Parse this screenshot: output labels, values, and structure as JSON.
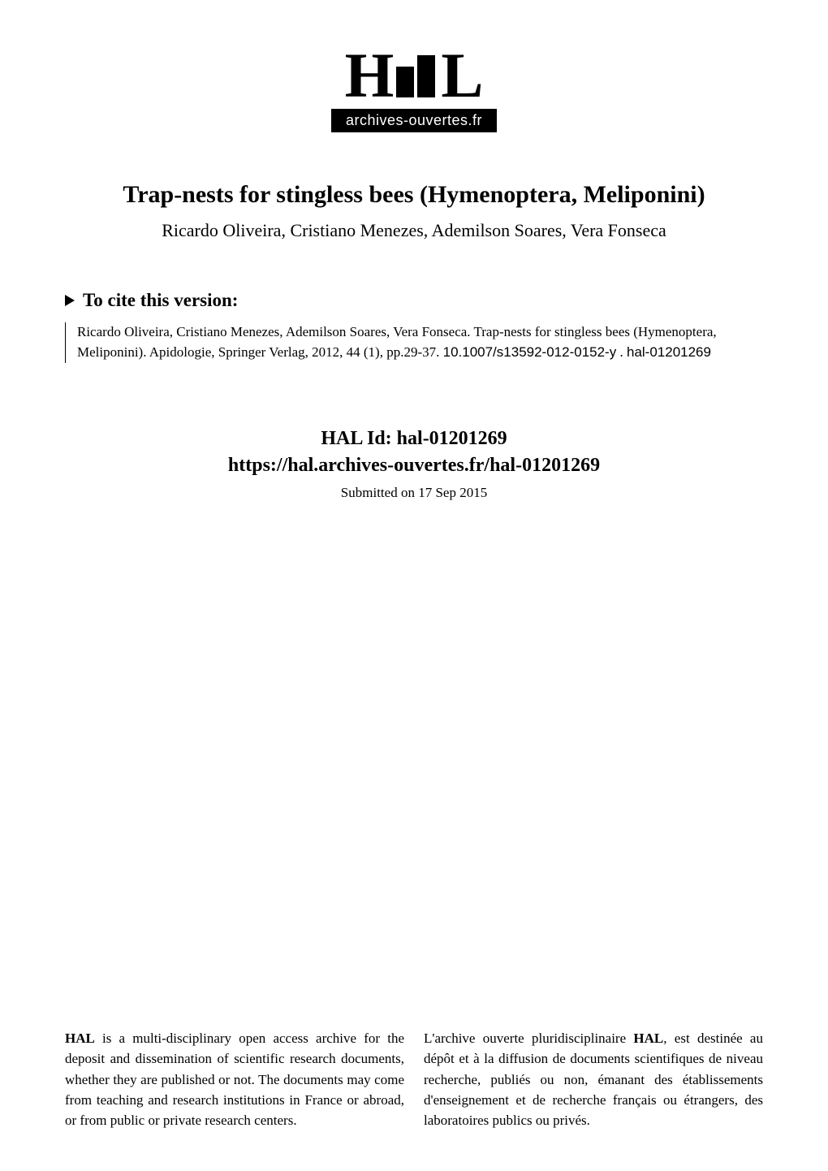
{
  "logo": {
    "text": "archives-ouvertes.fr"
  },
  "paper": {
    "title": "Trap-nests for stingless bees (Hymenoptera, Meliponini)",
    "authors": "Ricardo Oliveira, Cristiano Menezes, Ademilson Soares, Vera Fonseca"
  },
  "cite": {
    "header": "To cite this version:",
    "body_part1": "Ricardo Oliveira, Cristiano Menezes, Ademilson Soares, Vera Fonseca. Trap-nests for stingless bees (Hymenoptera, Meliponini). Apidologie, Springer Verlag, 2012, 44 (1), pp.29-37. ",
    "doi": "10.1007/s13592-012-0152-y",
    "body_part2": " . ",
    "hal_id_inline": "hal-01201269"
  },
  "hal": {
    "id_label": "HAL Id: hal-01201269",
    "url": "https://hal.archives-ouvertes.fr/hal-01201269",
    "submitted": "Submitted on 17 Sep 2015"
  },
  "descriptions": {
    "english_pre": "HAL",
    "english": " is a multi-disciplinary open access archive for the deposit and dissemination of scientific research documents, whether they are published or not. The documents may come from teaching and research institutions in France or abroad, or from public or private research centers.",
    "french_pre": "L'archive ouverte pluridisciplinaire ",
    "french_em": "HAL",
    "french": ", est destinée au dépôt et à la diffusion de documents scientifiques de niveau recherche, publiés ou non, émanant des établissements d'enseignement et de recherche français ou étrangers, des laboratoires publics ou privés."
  },
  "colors": {
    "text": "#000000",
    "background": "#ffffff"
  },
  "typography": {
    "base_family": "Times New Roman",
    "title_fontsize": 30,
    "authors_fontsize": 22,
    "cite_header_fontsize": 23,
    "cite_body_fontsize": 17,
    "hal_id_fontsize": 24,
    "submitted_fontsize": 17,
    "description_fontsize": 17
  }
}
